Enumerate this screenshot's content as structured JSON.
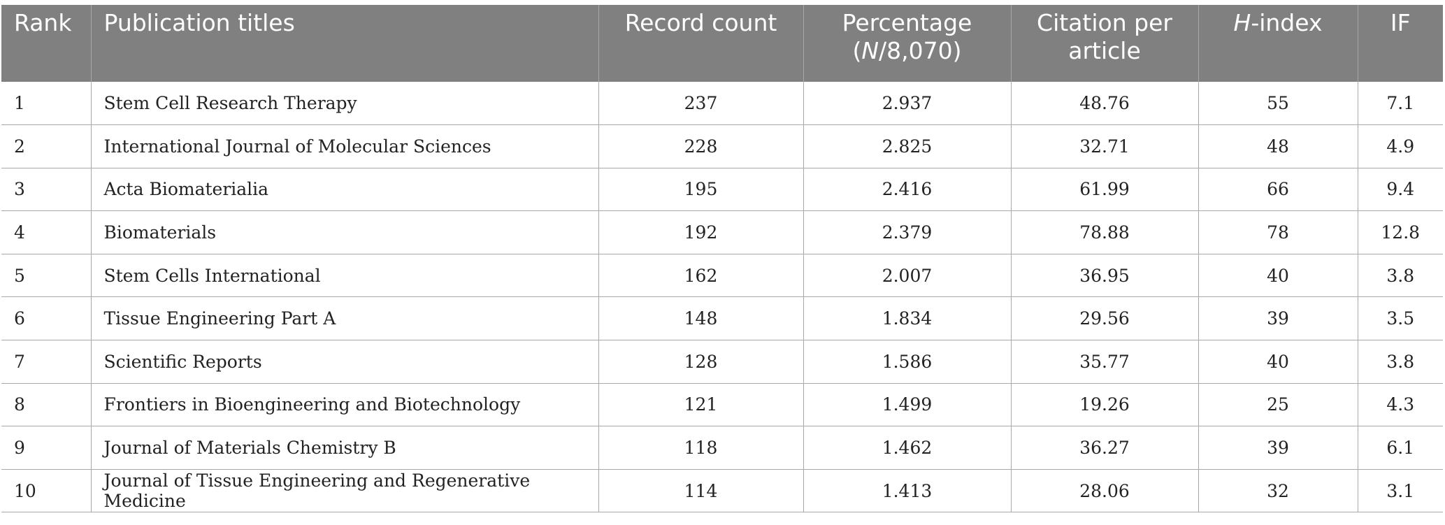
{
  "table": {
    "headers": {
      "rank": "Rank",
      "title": "Publication titles",
      "record_count": "Record count",
      "percentage_line1": "Percentage",
      "percentage_open": "(",
      "percentage_n": "N",
      "percentage_rest": "/8,070)",
      "citation_line1": "Citation per",
      "citation_line2": "article",
      "hindex_h": "H",
      "hindex_rest": "-index",
      "if": "IF"
    },
    "rows": [
      {
        "rank": "1",
        "title": "Stem Cell Research Therapy",
        "record_count": "237",
        "percentage": "2.937",
        "citation": "48.76",
        "hindex": "55",
        "if": "7.1"
      },
      {
        "rank": "2",
        "title": "International Journal of Molecular Sciences",
        "record_count": "228",
        "percentage": "2.825",
        "citation": "32.71",
        "hindex": "48",
        "if": "4.9"
      },
      {
        "rank": "3",
        "title": "Acta Biomaterialia",
        "record_count": "195",
        "percentage": "2.416",
        "citation": "61.99",
        "hindex": "66",
        "if": "9.4"
      },
      {
        "rank": "4",
        "title": "Biomaterials",
        "record_count": "192",
        "percentage": "2.379",
        "citation": "78.88",
        "hindex": "78",
        "if": "12.8"
      },
      {
        "rank": "5",
        "title": "Stem Cells International",
        "record_count": "162",
        "percentage": "2.007",
        "citation": "36.95",
        "hindex": "40",
        "if": "3.8"
      },
      {
        "rank": "6",
        "title": "Tissue Engineering Part A",
        "record_count": "148",
        "percentage": "1.834",
        "citation": "29.56",
        "hindex": "39",
        "if": "3.5"
      },
      {
        "rank": "7",
        "title": "Scientific Reports",
        "record_count": "128",
        "percentage": "1.586",
        "citation": "35.77",
        "hindex": "40",
        "if": "3.8"
      },
      {
        "rank": "8",
        "title": "Frontiers in Bioengineering and Biotechnology",
        "record_count": "121",
        "percentage": "1.499",
        "citation": "19.26",
        "hindex": "25",
        "if": "4.3"
      },
      {
        "rank": "9",
        "title": "Journal of Materials Chemistry B",
        "record_count": "118",
        "percentage": "1.462",
        "citation": "36.27",
        "hindex": "39",
        "if": "6.1"
      },
      {
        "rank": "10",
        "title": "Journal of Tissue Engineering and Regenerative Medicine",
        "record_count": "114",
        "percentage": "1.413",
        "citation": "28.06",
        "hindex": "32",
        "if": "3.1"
      }
    ]
  },
  "colors": {
    "header_bg": "#808080",
    "header_text": "#ffffff",
    "border": "#a8a8a8",
    "cell_text": "#222222"
  }
}
